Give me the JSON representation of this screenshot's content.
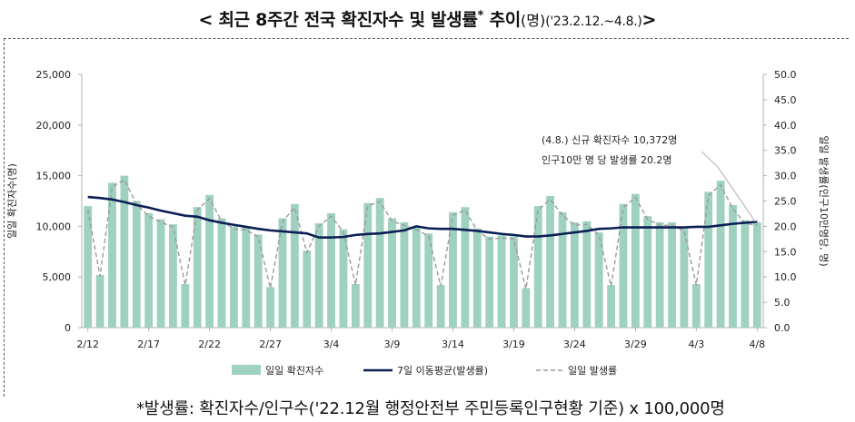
{
  "header": {
    "title_lead": "< 최근 8주간 전국 확진자수 및 발생률",
    "title_star": "*",
    "title_tail": " 추이",
    "title_unit": "(명)",
    "title_range": "('23.2.12.~4.8.)",
    "title_close": ">"
  },
  "footnote": "*발생률: 확진자수/인구수('22.12월 행정안전부 주민등록인구현황 기준) x 100,000명",
  "colors": {
    "bar": "#9fd1c0",
    "avg_line": "#0b1f55",
    "daily_rate": "#9a9a9a",
    "callout": "#bbbbbb"
  },
  "chart_data": {
    "type": "bar",
    "ylabel": "일일 확진자수(명)",
    "y2label": "일일 발생률(인구10만명당, 명)",
    "ylim": [
      0,
      25000
    ],
    "y2lim": [
      0,
      50
    ],
    "yticks": [
      "0",
      "5,000",
      "10,000",
      "15,000",
      "20,000",
      "25,000"
    ],
    "y2ticks": [
      "0.0",
      "5.0",
      "10.0",
      "15.0",
      "20.0",
      "25.0",
      "30.0",
      "35.0",
      "40.0",
      "45.0",
      "50.0"
    ],
    "xtick_labels": [
      "2/12",
      "2/17",
      "2/22",
      "2/27",
      "3/4",
      "3/9",
      "3/14",
      "3/19",
      "3/24",
      "3/29",
      "4/3",
      "4/8"
    ],
    "categories": [
      "2/12",
      "2/13",
      "2/14",
      "2/15",
      "2/16",
      "2/17",
      "2/18",
      "2/19",
      "2/20",
      "2/21",
      "2/22",
      "2/23",
      "2/24",
      "2/25",
      "2/26",
      "2/27",
      "2/28",
      "3/1",
      "3/2",
      "3/3",
      "3/4",
      "3/5",
      "3/6",
      "3/7",
      "3/8",
      "3/9",
      "3/10",
      "3/11",
      "3/12",
      "3/13",
      "3/14",
      "3/15",
      "3/16",
      "3/17",
      "3/18",
      "3/19",
      "3/20",
      "3/21",
      "3/22",
      "3/23",
      "3/24",
      "3/25",
      "3/26",
      "3/27",
      "3/28",
      "3/29",
      "3/30",
      "3/31",
      "4/1",
      "4/2",
      "4/3",
      "4/4",
      "4/5",
      "4/6",
      "4/7",
      "4/8"
    ],
    "series": [
      {
        "name": "일일 확진자수",
        "type": "bar",
        "axis": "left",
        "values": [
          12000,
          5200,
          14300,
          15000,
          12500,
          11300,
          10700,
          10200,
          4300,
          11900,
          13100,
          10800,
          10000,
          9900,
          9200,
          4000,
          10800,
          12200,
          7600,
          10300,
          11300,
          9700,
          4300,
          12300,
          12800,
          10800,
          10400,
          9900,
          9300,
          4200,
          11400,
          11900,
          9800,
          9000,
          9100,
          9000,
          3900,
          12000,
          13000,
          11400,
          10400,
          10500,
          9400,
          4200,
          12200,
          13200,
          11000,
          10400,
          10400,
          9800,
          4300,
          13400,
          14500,
          12100,
          10600,
          10400
        ]
      },
      {
        "name": "7일 이동평균(발생률)",
        "type": "line",
        "axis": "right",
        "values": [
          25.8,
          25.6,
          25.3,
          24.8,
          24.2,
          23.7,
          23.1,
          22.6,
          22.1,
          21.9,
          21.2,
          20.7,
          20.3,
          19.9,
          19.5,
          19.2,
          19.0,
          18.8,
          18.6,
          17.8,
          17.8,
          17.9,
          18.3,
          18.5,
          18.6,
          18.9,
          19.2,
          20.0,
          19.6,
          19.5,
          19.5,
          19.3,
          19.1,
          18.8,
          18.5,
          18.3,
          18.0,
          18.0,
          18.2,
          18.5,
          18.8,
          19.1,
          19.5,
          19.6,
          19.8,
          19.8,
          19.8,
          19.8,
          19.8,
          19.8,
          19.9,
          19.9,
          20.2,
          20.5,
          20.7,
          20.9
        ]
      },
      {
        "name": "일일 발생률",
        "type": "line",
        "axis": "right",
        "values": [
          23.3,
          10.1,
          27.8,
          29.2,
          24.4,
          22.0,
          20.8,
          19.9,
          8.4,
          23.2,
          25.5,
          21.0,
          19.5,
          19.3,
          17.9,
          7.8,
          21.0,
          23.7,
          14.8,
          20.1,
          22.0,
          18.9,
          8.4,
          24.0,
          24.9,
          21.0,
          20.2,
          19.3,
          18.1,
          8.2,
          22.2,
          23.2,
          19.1,
          17.5,
          17.7,
          17.5,
          7.6,
          23.3,
          25.3,
          22.2,
          20.2,
          20.4,
          18.3,
          8.2,
          23.7,
          25.7,
          21.4,
          20.2,
          20.2,
          19.1,
          8.4,
          26.1,
          28.2,
          23.5,
          20.6,
          20.2
        ]
      }
    ],
    "annotation": {
      "line1": "(4.8.) 신규 확진자수 10,372명",
      "line2": "인구10만 명 당 발생률 20.2명"
    },
    "legend": [
      "일일 확진자수",
      "7일 이동평균(발생률)",
      "일일 발생률"
    ],
    "legend_position": "bottom"
  }
}
